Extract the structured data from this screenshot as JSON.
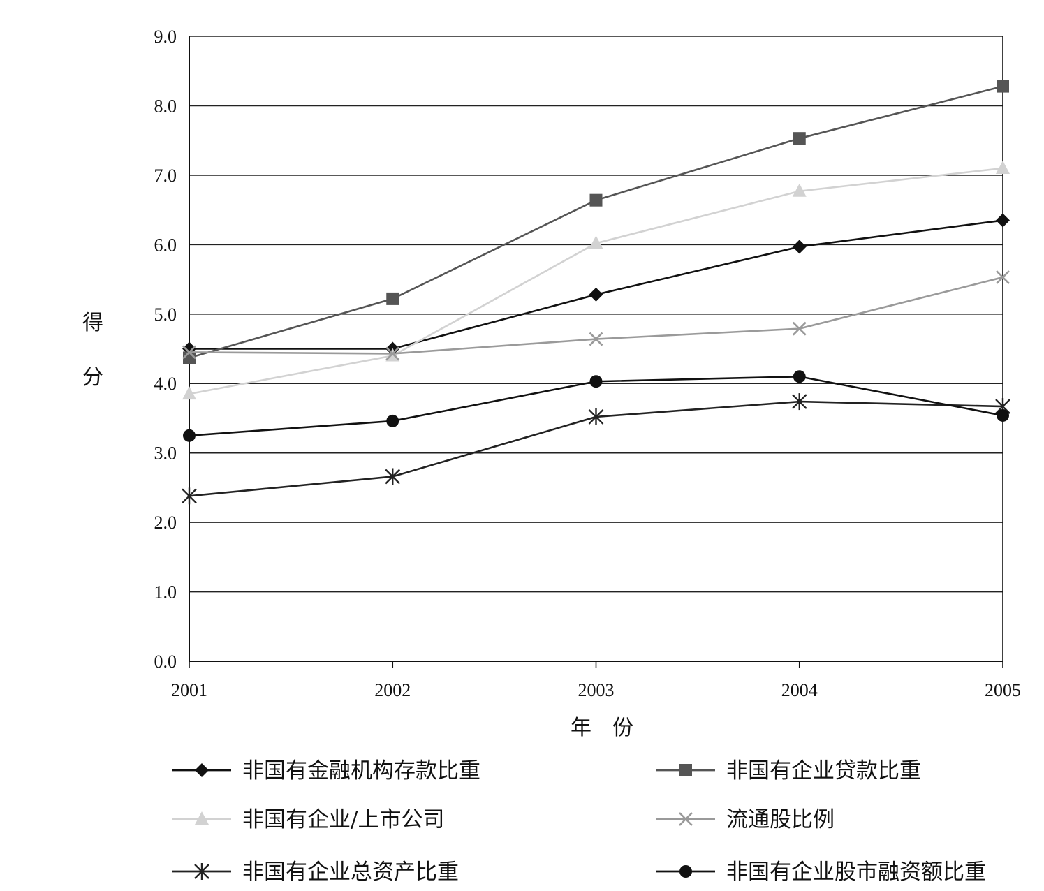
{
  "chart_data": {
    "type": "line",
    "xlabel": "年　份",
    "ylabel": "得分",
    "categories": [
      "2001",
      "2002",
      "2003",
      "2004",
      "2005"
    ],
    "ylim": [
      0,
      9
    ],
    "yticks": [
      "0.0",
      "1.0",
      "2.0",
      "3.0",
      "4.0",
      "5.0",
      "6.0",
      "7.0",
      "8.0",
      "9.0"
    ],
    "grid": true,
    "legend_position": "bottom",
    "series": [
      {
        "name": "非国有金融机构存款比重",
        "values": [
          4.5,
          4.5,
          5.28,
          5.97,
          6.35
        ],
        "marker": "diamond",
        "color": "#111111"
      },
      {
        "name": "非国有企业贷款比重",
        "values": [
          4.37,
          5.22,
          6.64,
          7.53,
          8.28
        ],
        "marker": "square",
        "color": "#555555"
      },
      {
        "name": "非国有企业/上市公司",
        "values": [
          3.85,
          4.4,
          6.02,
          6.77,
          7.1
        ],
        "marker": "triangle",
        "color": "#d2d2d2"
      },
      {
        "name": "流通股比例",
        "values": [
          4.45,
          4.43,
          4.64,
          4.79,
          5.53
        ],
        "marker": "x",
        "color": "#9a9a9a"
      },
      {
        "name": "非国有企业总资产比重",
        "values": [
          2.38,
          2.66,
          3.52,
          3.74,
          3.67
        ],
        "marker": "asterisk",
        "color": "#222222"
      },
      {
        "name": "非国有企业股市融资额比重",
        "values": [
          3.25,
          3.46,
          4.03,
          4.1,
          3.54
        ],
        "marker": "circle",
        "color": "#111111"
      }
    ]
  }
}
